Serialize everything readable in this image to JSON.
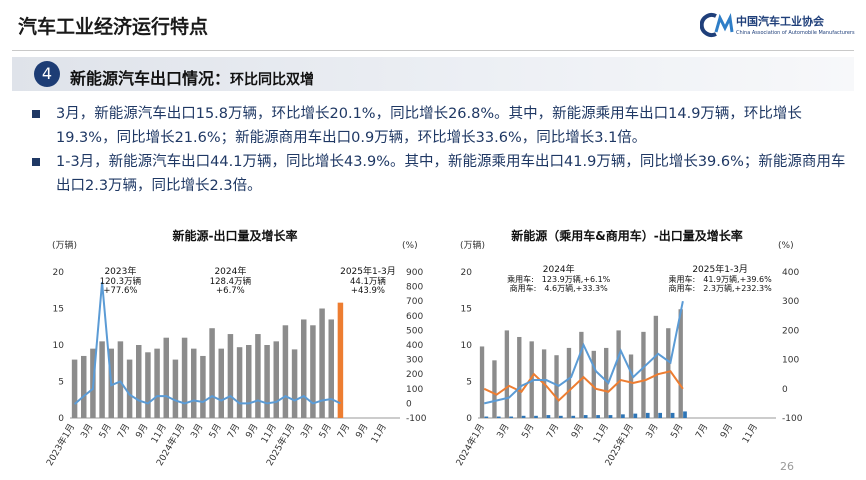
{
  "header": {
    "title": "汽车工业经济运行特点",
    "logo_text": "中国汽车工业协会",
    "logo_sub": "China Association of Automobile Manufacturers"
  },
  "section": {
    "number": "4",
    "title": "新能源汽车出口情况：",
    "subtitle": "环比同比双增"
  },
  "bullets": [
    "3月，新能源汽车出口15.8万辆，环比增长20.1%，同比增长26.8%。其中，新能源乘用车出口14.9万辆，环比增长19.3%，同比增长21.6%；新能源商用车出口0.9万辆，环比增长33.6%，同比增长3.1倍。",
    "1-3月，新能源汽车出口44.1万辆，同比增长43.9%。其中，新能源乘用车出口41.9万辆，同比增长39.6%；新能源商用车出口2.3万辆，同比增长2.3倍。"
  ],
  "page_number": "26",
  "colors": {
    "bar": "#8c8c8c",
    "bar_highlight": "#ed7d31",
    "line_blue": "#5b9bd5",
    "line_orange": "#ed7d31",
    "cv_bar": "#2e75b6",
    "navy": "#1f3864"
  },
  "chart_data": [
    {
      "type": "bar",
      "title": "新能源-出口量及增长率",
      "left_unit": "(万辆)",
      "right_unit": "(%)",
      "y_left_lim": [
        0,
        20
      ],
      "y_left_ticks": [
        "0",
        "5",
        "10",
        "15",
        "20"
      ],
      "y_right_lim": [
        -100,
        900
      ],
      "y_right_ticks": [
        "-100",
        "0",
        "100",
        "200",
        "300",
        "400",
        "500",
        "600",
        "700",
        "800",
        "900"
      ],
      "x_tick_labels": [
        "2023年1月",
        "3月",
        "5月",
        "7月",
        "9月",
        "11月",
        "2024年1月",
        "3月",
        "5月",
        "7月",
        "9月",
        "11月",
        "2025年1月",
        "3月",
        "5月",
        "7月",
        "9月",
        "11月"
      ],
      "bars": [
        8.0,
        8.5,
        9.5,
        10.5,
        9.5,
        10.5,
        8.0,
        10.0,
        9.0,
        9.5,
        11.0,
        8.0,
        11.0,
        9.5,
        8.5,
        12.3,
        9.5,
        11.5,
        9.7,
        10.0,
        11.5,
        10.0,
        10.5,
        12.7,
        9.4,
        13.5,
        12.7,
        15.0,
        13.5,
        15.8
      ],
      "highlight_index": 29,
      "growth": [
        -5,
        50,
        100,
        830,
        125,
        150,
        60,
        20,
        0,
        50,
        50,
        20,
        0,
        20,
        10,
        50,
        20,
        50,
        0,
        0,
        20,
        0,
        10,
        50,
        20,
        50,
        0,
        20,
        30,
        0
      ],
      "annotations": [
        {
          "title": "2023年",
          "lines": [
            "120.3万辆",
            "+77.6%"
          ]
        },
        {
          "title": "2024年",
          "lines": [
            "128.4万辆",
            "+6.7%"
          ]
        },
        {
          "title": "2025年1-3月",
          "lines": [
            "44.1万辆",
            "+43.9%"
          ]
        }
      ]
    },
    {
      "type": "bar",
      "title": "新能源（乘用车&商用车）-出口量及增长率",
      "left_unit": "(万辆)",
      "right_unit": "(%)",
      "y_left_lim": [
        0,
        20
      ],
      "y_left_ticks": [
        "0",
        "5",
        "10",
        "15",
        "20"
      ],
      "y_right_lim": [
        -100,
        400
      ],
      "y_right_ticks": [
        "-100",
        "0",
        "100",
        "200",
        "300",
        "400"
      ],
      "x_tick_labels": [
        "2024年1月",
        "3月",
        "5月",
        "7月",
        "9月",
        "11月",
        "2025年1月",
        "3月",
        "5月",
        "7月",
        "9月",
        "11月"
      ],
      "series": [
        {
          "name": "乘用车",
          "values": [
            9.8,
            7.9,
            12.0,
            11.1,
            10.5,
            9.4,
            8.6,
            9.6,
            11.8,
            9.2,
            9.6,
            12.0,
            8.7,
            11.8,
            14.0,
            12.3,
            14.9
          ]
        },
        {
          "name": "商用车",
          "values": [
            0.2,
            0.2,
            0.2,
            0.3,
            0.3,
            0.4,
            0.3,
            0.3,
            0.4,
            0.4,
            0.4,
            0.5,
            0.6,
            0.7,
            0.7,
            0.7,
            0.9
          ]
        }
      ],
      "growth": [
        {
          "name": "乘用车",
          "values": [
            -50,
            -40,
            -30,
            10,
            30,
            30,
            10,
            40,
            150,
            60,
            20,
            130,
            40,
            80,
            120,
            90,
            300
          ]
        },
        {
          "name": "商用车",
          "values": [
            0,
            -20,
            10,
            -10,
            50,
            10,
            -40,
            0,
            40,
            0,
            -10,
            30,
            20,
            30,
            50,
            60,
            0
          ]
        }
      ],
      "annotations": [
        {
          "title": "2024年",
          "lines": [
            "乘用车:　123.9万辆,+6.1%",
            "商用车:　4.6万辆,+33.3%"
          ]
        },
        {
          "title": "2025年1-3月",
          "lines": [
            "乘用车:　41.9万辆,+39.6%",
            "商用车:　2.3万辆,+232.3%"
          ]
        }
      ]
    }
  ]
}
